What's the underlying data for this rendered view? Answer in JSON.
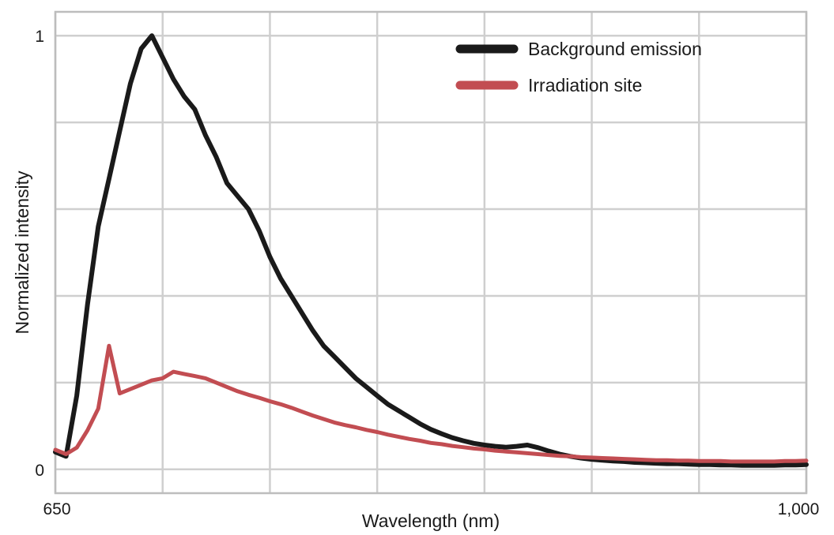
{
  "chart_data": {
    "type": "line",
    "title": "",
    "xlabel": "Wavelength (nm)",
    "ylabel": "Normalized intensity",
    "xlim": [
      650,
      1000
    ],
    "ylim": [
      -0.055,
      1.055
    ],
    "xgrid": [
      650,
      700,
      750,
      800,
      850,
      900,
      950,
      1000
    ],
    "ygrid": [
      0,
      0.2,
      0.4,
      0.6,
      0.8,
      1.0
    ],
    "xtick_labels": [
      "650",
      "1,000"
    ],
    "ytick_labels": [
      "0",
      "1"
    ],
    "grid": true,
    "legend_position": "upper right",
    "x": [
      650,
      655,
      660,
      665,
      670,
      675,
      680,
      685,
      690,
      695,
      700,
      705,
      710,
      715,
      720,
      725,
      730,
      735,
      740,
      745,
      750,
      755,
      760,
      765,
      770,
      775,
      780,
      785,
      790,
      795,
      800,
      805,
      810,
      815,
      820,
      825,
      830,
      835,
      840,
      845,
      850,
      855,
      860,
      865,
      870,
      875,
      880,
      885,
      890,
      895,
      900,
      905,
      910,
      915,
      920,
      925,
      930,
      935,
      940,
      945,
      950,
      955,
      960,
      965,
      970,
      975,
      980,
      985,
      990,
      995,
      1000
    ],
    "series": [
      {
        "name": "Background emission",
        "color": "#1a1a1a",
        "line_width": 6,
        "values": [
          0.04,
          0.03,
          0.17,
          0.38,
          0.56,
          0.67,
          0.78,
          0.89,
          0.97,
          1.0,
          0.95,
          0.9,
          0.86,
          0.83,
          0.77,
          0.72,
          0.66,
          0.63,
          0.6,
          0.55,
          0.49,
          0.44,
          0.4,
          0.36,
          0.32,
          0.285,
          0.26,
          0.235,
          0.21,
          0.19,
          0.17,
          0.15,
          0.135,
          0.12,
          0.105,
          0.092,
          0.082,
          0.073,
          0.066,
          0.06,
          0.056,
          0.053,
          0.051,
          0.053,
          0.056,
          0.05,
          0.042,
          0.035,
          0.03,
          0.026,
          0.023,
          0.021,
          0.019,
          0.018,
          0.016,
          0.015,
          0.014,
          0.013,
          0.013,
          0.012,
          0.011,
          0.011,
          0.01,
          0.01,
          0.009,
          0.009,
          0.009,
          0.009,
          0.01,
          0.01,
          0.011
        ]
      },
      {
        "name": "Irradiation site",
        "color": "#c24d52",
        "line_width": 5,
        "values": [
          0.045,
          0.035,
          0.05,
          0.09,
          0.14,
          0.285,
          0.175,
          0.185,
          0.195,
          0.205,
          0.21,
          0.225,
          0.22,
          0.215,
          0.21,
          0.2,
          0.19,
          0.18,
          0.172,
          0.165,
          0.157,
          0.15,
          0.142,
          0.133,
          0.124,
          0.116,
          0.108,
          0.102,
          0.097,
          0.091,
          0.086,
          0.08,
          0.075,
          0.07,
          0.066,
          0.061,
          0.058,
          0.054,
          0.051,
          0.048,
          0.046,
          0.043,
          0.041,
          0.039,
          0.037,
          0.035,
          0.033,
          0.031,
          0.03,
          0.028,
          0.027,
          0.026,
          0.025,
          0.024,
          0.023,
          0.022,
          0.021,
          0.021,
          0.02,
          0.02,
          0.019,
          0.019,
          0.019,
          0.018,
          0.018,
          0.018,
          0.018,
          0.018,
          0.019,
          0.019,
          0.02
        ]
      }
    ]
  }
}
